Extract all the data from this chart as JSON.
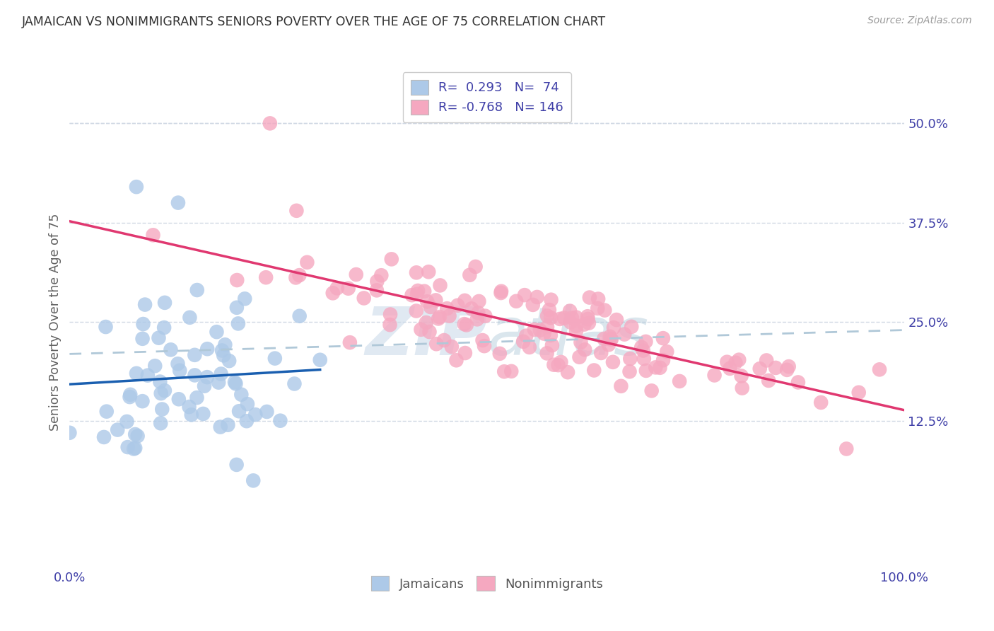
{
  "title": "JAMAICAN VS NONIMMIGRANTS SENIORS POVERTY OVER THE AGE OF 75 CORRELATION CHART",
  "source": "Source: ZipAtlas.com",
  "ylabel": "Seniors Poverty Over the Age of 75",
  "jamaicans_R": 0.293,
  "jamaicans_N": 74,
  "nonimmigrants_R": -0.768,
  "nonimmigrants_N": 146,
  "jamaicans_color": "#adc9e8",
  "nonimmigrants_color": "#f5a8c0",
  "jamaicans_line_color": "#1a5fb0",
  "nonimmigrants_line_color": "#e03870",
  "trend_line_color": "#b0c8d8",
  "background_color": "#ffffff",
  "grid_color": "#d0d8e4",
  "title_color": "#303030",
  "axis_label_color": "#4040a8",
  "watermark_color": "#c8d8e8",
  "xlim": [
    0.0,
    1.0
  ],
  "ylim": [
    -0.06,
    0.56
  ],
  "y_ticks": [
    0.125,
    0.25,
    0.375,
    0.5
  ],
  "y_tick_labels": [
    "12.5%",
    "25.0%",
    "37.5%",
    "50.0%"
  ],
  "x_ticks": [
    0.0,
    1.0
  ],
  "x_tick_labels": [
    "0.0%",
    "100.0%"
  ]
}
